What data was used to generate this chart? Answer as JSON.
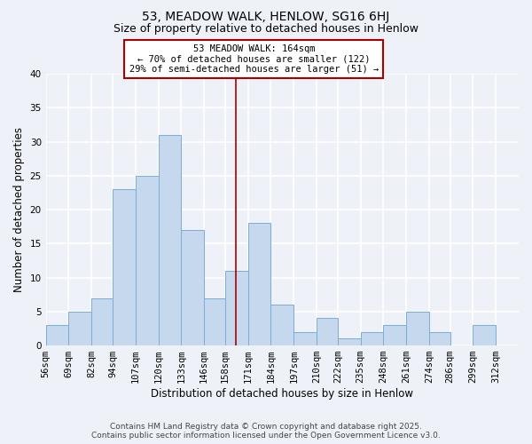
{
  "title": "53, MEADOW WALK, HENLOW, SG16 6HJ",
  "subtitle": "Size of property relative to detached houses in Henlow",
  "xlabel": "Distribution of detached houses by size in Henlow",
  "ylabel": "Number of detached properties",
  "bar_color": "#c5d8ee",
  "bar_edge_color": "#7aaed4",
  "background_color": "#eef2f8",
  "grid_color": "#ffffff",
  "bin_labels": [
    "56sqm",
    "69sqm",
    "82sqm",
    "94sqm",
    "107sqm",
    "120sqm",
    "133sqm",
    "146sqm",
    "158sqm",
    "171sqm",
    "184sqm",
    "197sqm",
    "210sqm",
    "222sqm",
    "235sqm",
    "248sqm",
    "261sqm",
    "274sqm",
    "286sqm",
    "299sqm",
    "312sqm"
  ],
  "bin_edges": [
    56,
    69,
    82,
    94,
    107,
    120,
    133,
    146,
    158,
    171,
    184,
    197,
    210,
    222,
    235,
    248,
    261,
    274,
    286,
    299,
    312
  ],
  "counts": [
    3,
    5,
    7,
    23,
    25,
    31,
    17,
    7,
    11,
    18,
    6,
    2,
    4,
    1,
    2,
    3,
    5,
    2,
    0,
    3
  ],
  "ylim": [
    0,
    40
  ],
  "yticks": [
    0,
    5,
    10,
    15,
    20,
    25,
    30,
    35,
    40
  ],
  "vline_x": 164,
  "vline_color": "#aa0000",
  "annotation_title": "53 MEADOW WALK: 164sqm",
  "annotation_line1": "← 70% of detached houses are smaller (122)",
  "annotation_line2": "29% of semi-detached houses are larger (51) →",
  "annotation_box_edge": "#aa0000",
  "annotation_box_face": "#ffffff",
  "footer_line1": "Contains HM Land Registry data © Crown copyright and database right 2025.",
  "footer_line2": "Contains public sector information licensed under the Open Government Licence v3.0.",
  "title_fontsize": 10,
  "subtitle_fontsize": 9,
  "axis_label_fontsize": 8.5,
  "tick_fontsize": 7.5,
  "annotation_fontsize": 7.5,
  "footer_fontsize": 6.5
}
